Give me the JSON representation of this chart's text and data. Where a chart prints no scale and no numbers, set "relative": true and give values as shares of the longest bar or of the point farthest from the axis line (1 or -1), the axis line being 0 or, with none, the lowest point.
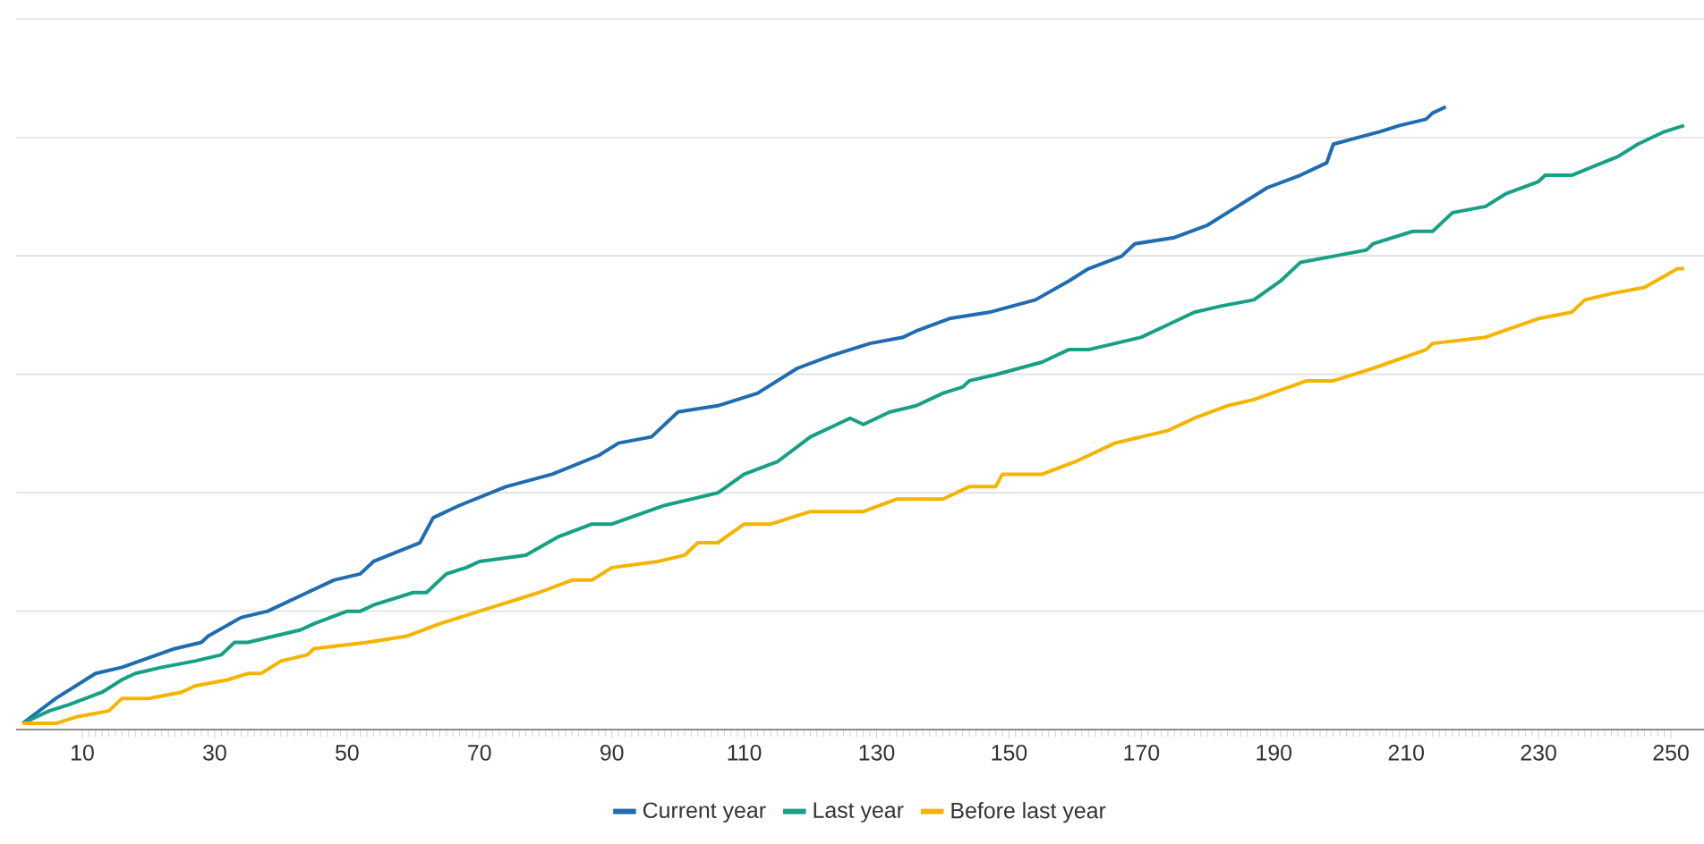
{
  "chart_data": {
    "type": "line",
    "relative": true,
    "grid": "y",
    "legend": "bottom",
    "marker": "none",
    "line_style": "solid",
    "xlim": [
      0,
      255
    ],
    "xticks": [
      10,
      30,
      50,
      70,
      90,
      110,
      130,
      150,
      170,
      190,
      210,
      230,
      250
    ],
    "series": [
      {
        "name": "Current year",
        "color": "#1f6cb0",
        "x": [
          1,
          6,
          12,
          16,
          24,
          28,
          29,
          34,
          38,
          44,
          48,
          52,
          54,
          61,
          63,
          67,
          74,
          81,
          88,
          91,
          96,
          100,
          106,
          112,
          118,
          123,
          126,
          129,
          134,
          136,
          141,
          147,
          154,
          159,
          162,
          167,
          169,
          175,
          180,
          183,
          189,
          194,
          198,
          199,
          206,
          209,
          213,
          214,
          216
        ],
        "values": [
          0.01,
          0.05,
          0.09,
          0.1,
          0.13,
          0.14,
          0.15,
          0.18,
          0.19,
          0.22,
          0.24,
          0.25,
          0.27,
          0.3,
          0.34,
          0.36,
          0.39,
          0.41,
          0.44,
          0.46,
          0.47,
          0.51,
          0.52,
          0.54,
          0.58,
          0.6,
          0.61,
          0.62,
          0.63,
          0.64,
          0.66,
          0.67,
          0.69,
          0.72,
          0.74,
          0.76,
          0.78,
          0.79,
          0.81,
          0.83,
          0.87,
          0.89,
          0.91,
          0.94,
          0.96,
          0.97,
          0.98,
          0.99,
          1.0
        ]
      },
      {
        "name": "Last year",
        "color": "#16a085",
        "x": [
          1,
          5,
          8,
          13,
          16,
          18,
          22,
          27,
          31,
          33,
          35,
          43,
          45,
          50,
          52,
          54,
          60,
          62,
          65,
          68,
          70,
          77,
          82,
          87,
          90,
          98,
          106,
          110,
          115,
          120,
          124,
          126,
          128,
          132,
          136,
          140,
          143,
          144,
          148,
          155,
          159,
          162,
          170,
          174,
          178,
          182,
          187,
          191,
          194,
          199,
          204,
          205,
          211,
          214,
          217,
          222,
          225,
          230,
          231,
          235,
          242,
          245,
          249,
          252
        ],
        "values": [
          0.01,
          0.03,
          0.04,
          0.06,
          0.08,
          0.09,
          0.1,
          0.11,
          0.12,
          0.14,
          0.14,
          0.16,
          0.17,
          0.19,
          0.19,
          0.2,
          0.22,
          0.22,
          0.25,
          0.26,
          0.27,
          0.28,
          0.31,
          0.33,
          0.33,
          0.36,
          0.38,
          0.41,
          0.43,
          0.47,
          0.49,
          0.5,
          0.49,
          0.51,
          0.52,
          0.54,
          0.55,
          0.56,
          0.57,
          0.59,
          0.61,
          0.61,
          0.63,
          0.65,
          0.67,
          0.68,
          0.69,
          0.72,
          0.75,
          0.76,
          0.77,
          0.78,
          0.8,
          0.8,
          0.83,
          0.84,
          0.86,
          0.88,
          0.89,
          0.89,
          0.92,
          0.94,
          0.96,
          0.97
        ]
      },
      {
        "name": "Before last year",
        "color": "#f4b400",
        "x": [
          1,
          6,
          9,
          14,
          16,
          20,
          25,
          27,
          32,
          35,
          37,
          40,
          44,
          45,
          53,
          59,
          64,
          70,
          73,
          79,
          84,
          87,
          90,
          97,
          101,
          103,
          106,
          110,
          114,
          120,
          126,
          128,
          133,
          140,
          144,
          148,
          149,
          155,
          160,
          162,
          166,
          170,
          174,
          178,
          183,
          187,
          195,
          199,
          205,
          213,
          214,
          222,
          230,
          235,
          237,
          241,
          246,
          251,
          252
        ],
        "values": [
          0.01,
          0.01,
          0.02,
          0.03,
          0.05,
          0.05,
          0.06,
          0.07,
          0.08,
          0.09,
          0.09,
          0.11,
          0.12,
          0.13,
          0.14,
          0.15,
          0.17,
          0.19,
          0.2,
          0.22,
          0.24,
          0.24,
          0.26,
          0.27,
          0.28,
          0.3,
          0.3,
          0.33,
          0.33,
          0.35,
          0.35,
          0.35,
          0.37,
          0.37,
          0.39,
          0.39,
          0.41,
          0.41,
          0.43,
          0.44,
          0.46,
          0.47,
          0.48,
          0.5,
          0.52,
          0.53,
          0.56,
          0.56,
          0.58,
          0.61,
          0.62,
          0.63,
          0.66,
          0.67,
          0.69,
          0.7,
          0.71,
          0.74,
          0.74
        ]
      }
    ]
  }
}
